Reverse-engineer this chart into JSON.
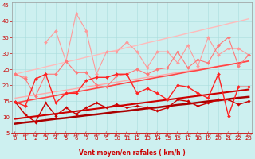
{
  "x": [
    0,
    1,
    2,
    3,
    4,
    5,
    6,
    7,
    8,
    9,
    10,
    11,
    12,
    13,
    14,
    15,
    16,
    17,
    18,
    19,
    20,
    21,
    22,
    23
  ],
  "lines": [
    {
      "y": [
        14.8,
        13.5,
        22.0,
        23.5,
        14.5,
        17.5,
        17.5,
        21.5,
        22.5,
        22.5,
        23.5,
        23.5,
        17.5,
        19.0,
        17.5,
        15.5,
        20.0,
        19.5,
        17.5,
        16.0,
        23.5,
        10.5,
        19.5,
        19.5
      ],
      "color": "#ff2222",
      "lw": 1.0,
      "marker": "D",
      "ms": 2.0,
      "zorder": 6
    },
    {
      "y": [
        14.8,
        10.8,
        8.5,
        14.5,
        10.5,
        13.0,
        11.0,
        13.0,
        14.5,
        13.0,
        14.0,
        13.0,
        13.5,
        13.0,
        12.0,
        13.0,
        15.5,
        15.0,
        13.5,
        14.5,
        15.5,
        15.5,
        14.0,
        15.0
      ],
      "color": "#cc0000",
      "lw": 1.0,
      "marker": "D",
      "ms": 1.8,
      "zorder": 5
    },
    {
      "y": [
        14.5,
        15.1,
        15.7,
        16.2,
        16.8,
        17.4,
        17.9,
        18.5,
        19.1,
        19.6,
        20.2,
        20.8,
        21.3,
        21.9,
        22.5,
        23.0,
        23.6,
        24.2,
        24.7,
        25.3,
        25.9,
        26.4,
        27.0,
        27.6
      ],
      "color": "#ff4444",
      "lw": 1.2,
      "marker": null,
      "ms": 0,
      "zorder": 3
    },
    {
      "y": [
        9.5,
        9.9,
        10.3,
        10.7,
        11.1,
        11.5,
        11.9,
        12.3,
        12.7,
        13.1,
        13.5,
        13.9,
        14.3,
        14.7,
        15.1,
        15.5,
        15.9,
        16.3,
        16.7,
        17.1,
        17.5,
        17.9,
        18.3,
        18.7
      ],
      "color": "#cc0000",
      "lw": 1.5,
      "marker": null,
      "ms": 0,
      "zorder": 3
    },
    {
      "y": [
        8.0,
        8.4,
        8.7,
        9.1,
        9.5,
        9.8,
        10.2,
        10.6,
        10.9,
        11.3,
        11.7,
        12.0,
        12.4,
        12.8,
        13.1,
        13.5,
        13.9,
        14.2,
        14.6,
        15.0,
        15.3,
        15.7,
        16.1,
        16.4
      ],
      "color": "#aa0000",
      "lw": 1.8,
      "marker": null,
      "ms": 0,
      "zorder": 3
    },
    {
      "y": [
        23.5,
        22.5,
        null,
        33.5,
        37.0,
        27.5,
        42.5,
        37.0,
        23.5,
        30.5,
        30.5,
        33.5,
        30.5,
        25.5,
        30.5,
        30.5,
        27.0,
        32.5,
        26.0,
        35.0,
        29.5,
        31.5,
        31.5,
        29.5
      ],
      "color": "#ff9999",
      "lw": 0.8,
      "marker": "D",
      "ms": 2.0,
      "zorder": 4
    },
    {
      "y": [
        23.5,
        22.0,
        16.5,
        23.5,
        23.5,
        27.5,
        24.0,
        24.0,
        20.0,
        19.5,
        23.0,
        23.5,
        25.0,
        23.5,
        25.0,
        25.5,
        30.5,
        25.5,
        28.0,
        27.0,
        32.5,
        35.0,
        26.0,
        29.5
      ],
      "color": "#ff7777",
      "lw": 0.8,
      "marker": "D",
      "ms": 2.0,
      "zorder": 4
    },
    {
      "y": [
        23.5,
        24.3,
        25.0,
        25.8,
        26.5,
        27.3,
        28.0,
        28.8,
        29.5,
        30.3,
        31.0,
        31.8,
        32.5,
        33.3,
        34.0,
        34.8,
        35.5,
        36.3,
        37.0,
        37.8,
        38.5,
        39.3,
        40.0,
        40.8
      ],
      "color": "#ffbbbb",
      "lw": 1.0,
      "marker": null,
      "ms": 0,
      "zorder": 2
    },
    {
      "y": [
        16.0,
        16.5,
        17.0,
        17.5,
        18.0,
        18.5,
        19.0,
        19.5,
        20.0,
        20.5,
        21.0,
        21.5,
        22.0,
        22.5,
        23.0,
        23.5,
        24.0,
        24.5,
        25.0,
        25.5,
        26.0,
        26.5,
        27.0,
        27.5
      ],
      "color": "#ffaaaa",
      "lw": 1.0,
      "marker": null,
      "ms": 0,
      "zorder": 2
    }
  ],
  "xlabel": "Vent moyen/en rafales ( km/h )",
  "xlim": [
    0,
    23
  ],
  "ylim": [
    5,
    46
  ],
  "yticks": [
    5,
    10,
    15,
    20,
    25,
    30,
    35,
    40,
    45
  ],
  "xticks": [
    0,
    1,
    2,
    3,
    4,
    5,
    6,
    7,
    8,
    9,
    10,
    11,
    12,
    13,
    14,
    15,
    16,
    17,
    18,
    19,
    20,
    21,
    22,
    23
  ],
  "bg_color": "#cdf0f0",
  "grid_color": "#aadddd",
  "xlabel_color": "#cc0000",
  "tick_color": "#cc0000",
  "arrow_color": "#cc4444",
  "spine_bottom_color": "#cc0000"
}
